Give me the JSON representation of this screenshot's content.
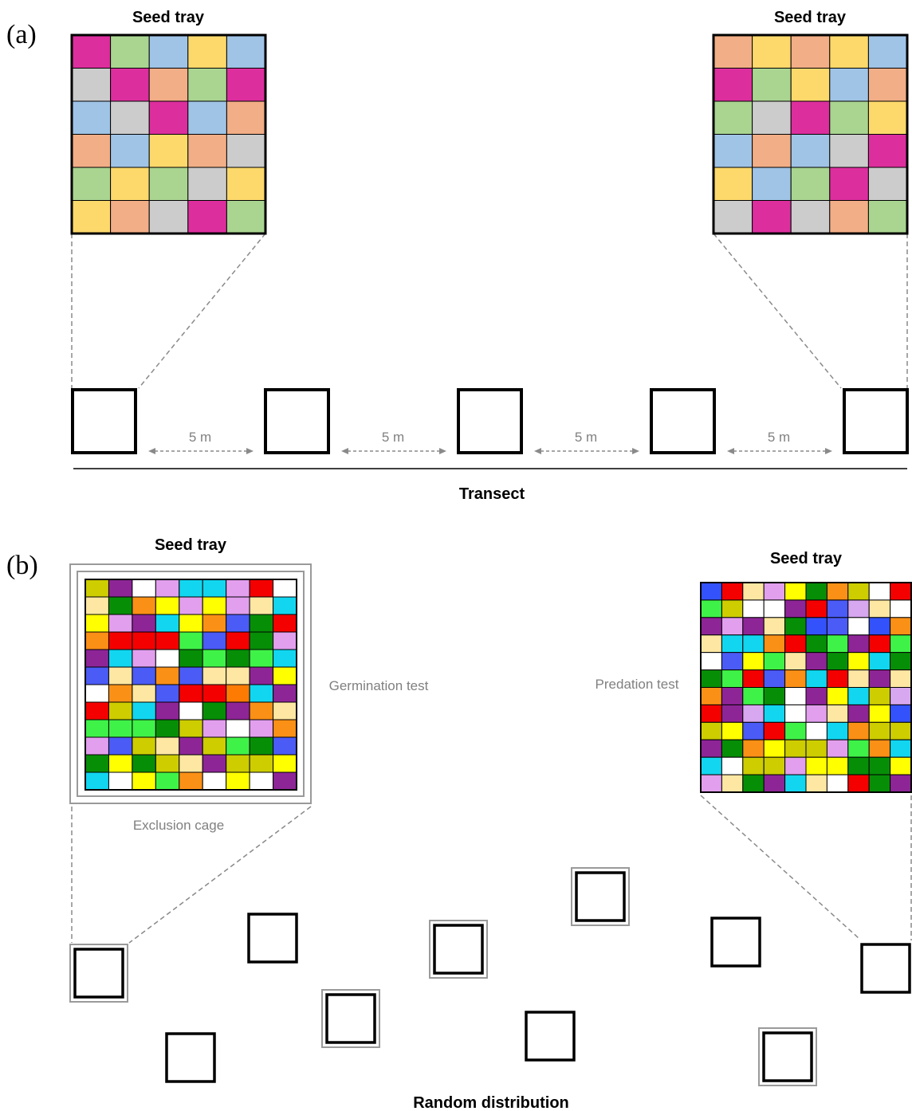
{
  "colors": {
    "a": {
      "M": "#dd2e9e",
      "G": "#a9d591",
      "B": "#a0c4e6",
      "Y": "#fdd96b",
      "O": "#f2ae86",
      "L": "#cccccc"
    },
    "b": {
      "Y": "#cdcd00",
      "P": "#8e2597",
      "W": "#ffffff",
      "O": "#fb9016",
      "V": "#e29fee",
      "C": "#12d6f0",
      "L": "#d7a7f0",
      "B": "#4b5bf6",
      "R": "#f50000",
      "F": "#fde7a2",
      "U": "#ffff00",
      "D": "#078e07",
      "E": "#3ff248",
      "K": "#fd7b03",
      "N": "#3352fb"
    },
    "line": "#000000",
    "dash": "#8a8a8a",
    "cage": "#9a9a9a",
    "label_gray": "#808080"
  },
  "panel_a": {
    "label": "(a)",
    "tray_left": {
      "title": "Seed tray",
      "grid": [
        "MGBYB",
        "LMOGM",
        "BLMBO",
        "OBYOL",
        "GYGLY",
        "YOLMG"
      ]
    },
    "tray_right": {
      "title": "Seed tray",
      "grid": [
        "OYOYB",
        "MGYBO",
        "GLMGY",
        "BOBLM",
        "YBGML",
        "LMLOG"
      ]
    },
    "distance_labels": [
      "5 m",
      "5 m",
      "5 m",
      "5 m"
    ],
    "transect_label": "Transect"
  },
  "panel_b": {
    "label": "(b)",
    "tray_left": {
      "title": "Seed tray",
      "test_label": "Germination test",
      "cage_label": "Exclusion cage",
      "grid": [
        "YPWVCCVRW",
        "FDOUVUVFC",
        "UVPCUOBDR",
        "ORRREBRDV",
        "PCVWDEDEC",
        "BFBOBFFPU",
        "WOFBRRKCP",
        "RYCPWDPOF",
        "EEEDYVWVO",
        "VBYFPYEDB",
        "DUDYFPYYU",
        "CWUEOWUWP"
      ]
    },
    "tray_right": {
      "title": "Seed tray",
      "test_label": "Predation test",
      "grid": [
        "NRFVUDOYWR",
        "EYWWPRBLFW",
        "PVPFDNBWNO",
        "FCCORDEPRE",
        "WBUEFPDUCD",
        "DERBOCRFPF",
        "OPEDWPUCYL",
        "RPLCWVFPUN",
        "YUBREWCOYY",
        "PDOUYYVEOC",
        "CWYYVUUDDU",
        "VFDPCFWRDP"
      ]
    },
    "distribution_label": "Random distribution"
  }
}
